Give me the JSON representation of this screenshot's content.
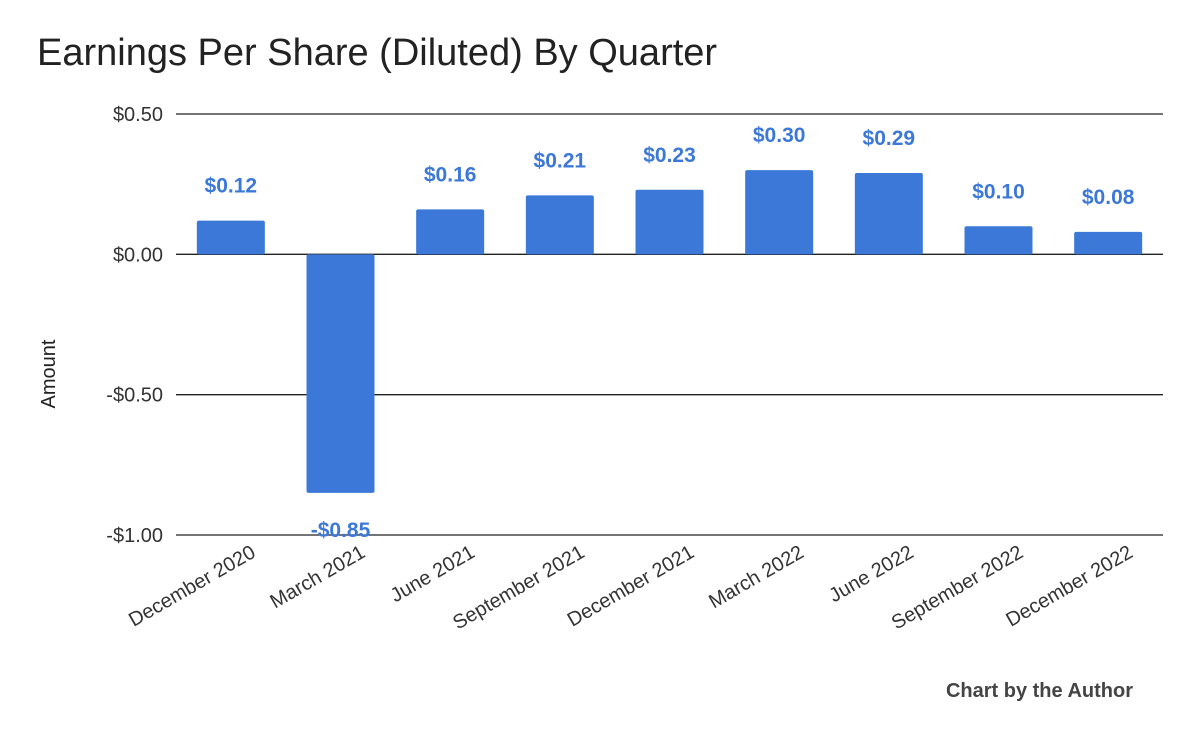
{
  "chart_data": {
    "type": "bar",
    "title": "Earnings Per Share (Diluted) By Quarter",
    "ylabel": "Amount",
    "xlabel": "",
    "categories": [
      "December 2020",
      "March 2021",
      "June 2021",
      "September 2021",
      "December 2021",
      "March 2022",
      "June 2022",
      "September 2022",
      "December 2022"
    ],
    "values": [
      0.12,
      -0.85,
      0.16,
      0.21,
      0.23,
      0.3,
      0.29,
      0.1,
      0.08
    ],
    "value_labels": [
      "$0.12",
      "-$0.85",
      "$0.16",
      "$0.21",
      "$0.23",
      "$0.30",
      "$0.29",
      "$0.10",
      "$0.08"
    ],
    "ylim": [
      -1.0,
      0.5
    ],
    "yticks": [
      0.5,
      0.0,
      -0.5,
      -1.0
    ],
    "ytick_labels": [
      "$0.50",
      "$0.00",
      "-$0.50",
      "-$1.00"
    ],
    "grid": true,
    "legend": "none",
    "colors": {
      "bar": "#3c78d8",
      "label": "#3c78d8",
      "grid": "#222222"
    }
  },
  "credit": "Chart by the Author"
}
